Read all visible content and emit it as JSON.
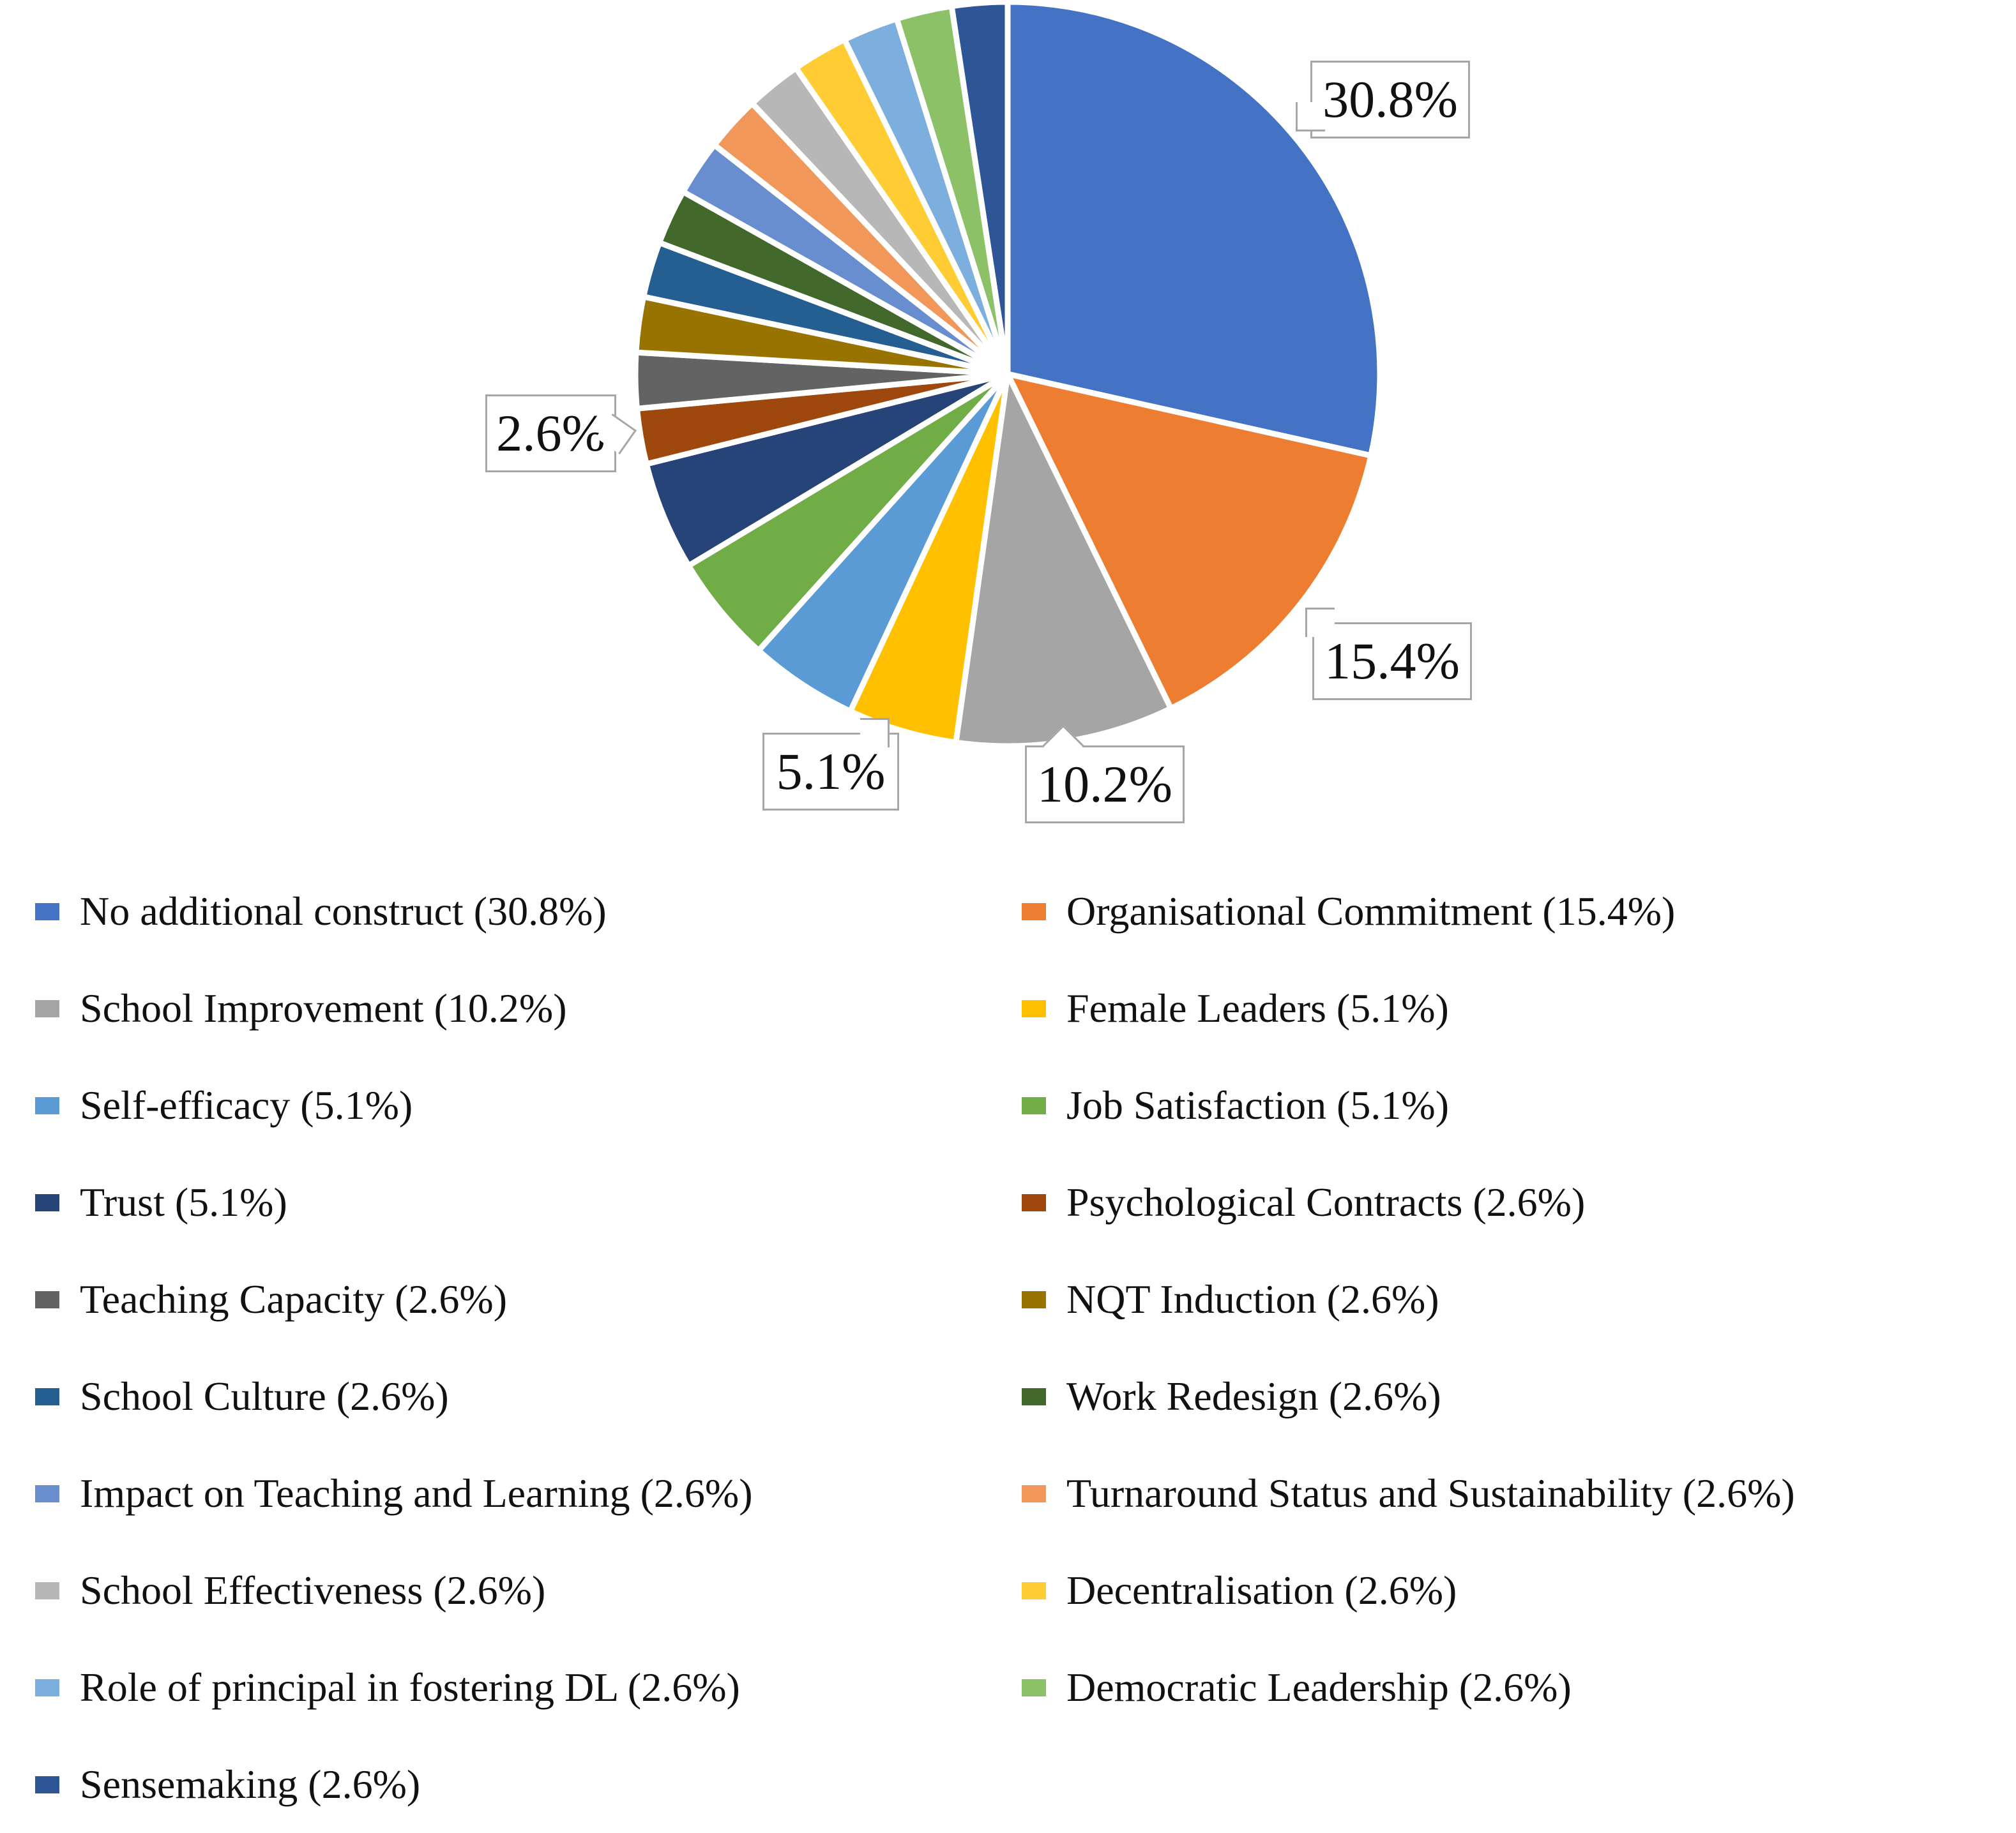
{
  "chart_data": {
    "type": "pie",
    "title": "",
    "unit": "%",
    "legend_position": "bottom",
    "legend_columns": 2,
    "categories": [
      "No additional construct",
      "Organisational Commitment",
      "School Improvement",
      "Female Leaders",
      "Self-efficacy",
      "Job Satisfaction",
      "Trust",
      "Psychological Contracts",
      "Teaching Capacity",
      "NQT Induction",
      "School Culture",
      "Work Redesign",
      "Impact on Teaching and Learning",
      "Turnaround Status and Sustainability",
      "School Effectiveness",
      "Decentralisation",
      "Role of principal in fostering DL",
      "Democratic Leadership",
      "Sensemaking"
    ],
    "values": [
      30.8,
      15.4,
      10.2,
      5.1,
      5.1,
      5.1,
      5.1,
      2.6,
      2.6,
      2.6,
      2.6,
      2.6,
      2.6,
      2.6,
      2.6,
      2.6,
      2.6,
      2.6,
      2.6
    ],
    "colors": [
      "#4472C4",
      "#ED7D31",
      "#A5A5A5",
      "#FFC000",
      "#5B9BD5",
      "#70AD47",
      "#264478",
      "#9E480E",
      "#636363",
      "#997300",
      "#255E91",
      "#43682B",
      "#698ED0",
      "#F1975A",
      "#B7B7B7",
      "#FFCD33",
      "#7CAFDD",
      "#8CC168",
      "#2E5596"
    ],
    "legend_labels": [
      "No additional construct (30.8%)",
      "Organisational Commitment (15.4%)",
      "School Improvement (10.2%)",
      "Female Leaders (5.1%)",
      "Self-efficacy (5.1%)",
      "Job Satisfaction (5.1%)",
      "Trust (5.1%)",
      "Psychological Contracts (2.6%)",
      "Teaching Capacity (2.6%)",
      "NQT Induction (2.6%)",
      "School Culture (2.6%)",
      "Work Redesign (2.6%)",
      "Impact on Teaching and Learning (2.6%)",
      "Turnaround Status and Sustainability (2.6%)",
      "School Effectiveness (2.6%)",
      "Decentralisation (2.6%)",
      "Role of principal in fostering DL (2.6%)",
      "Democratic Leadership (2.6%)",
      "Sensemaking (2.6%)"
    ],
    "callout_labels": [
      "30.8%",
      "15.4%",
      "10.2%",
      "5.1%",
      "2.6%"
    ]
  }
}
